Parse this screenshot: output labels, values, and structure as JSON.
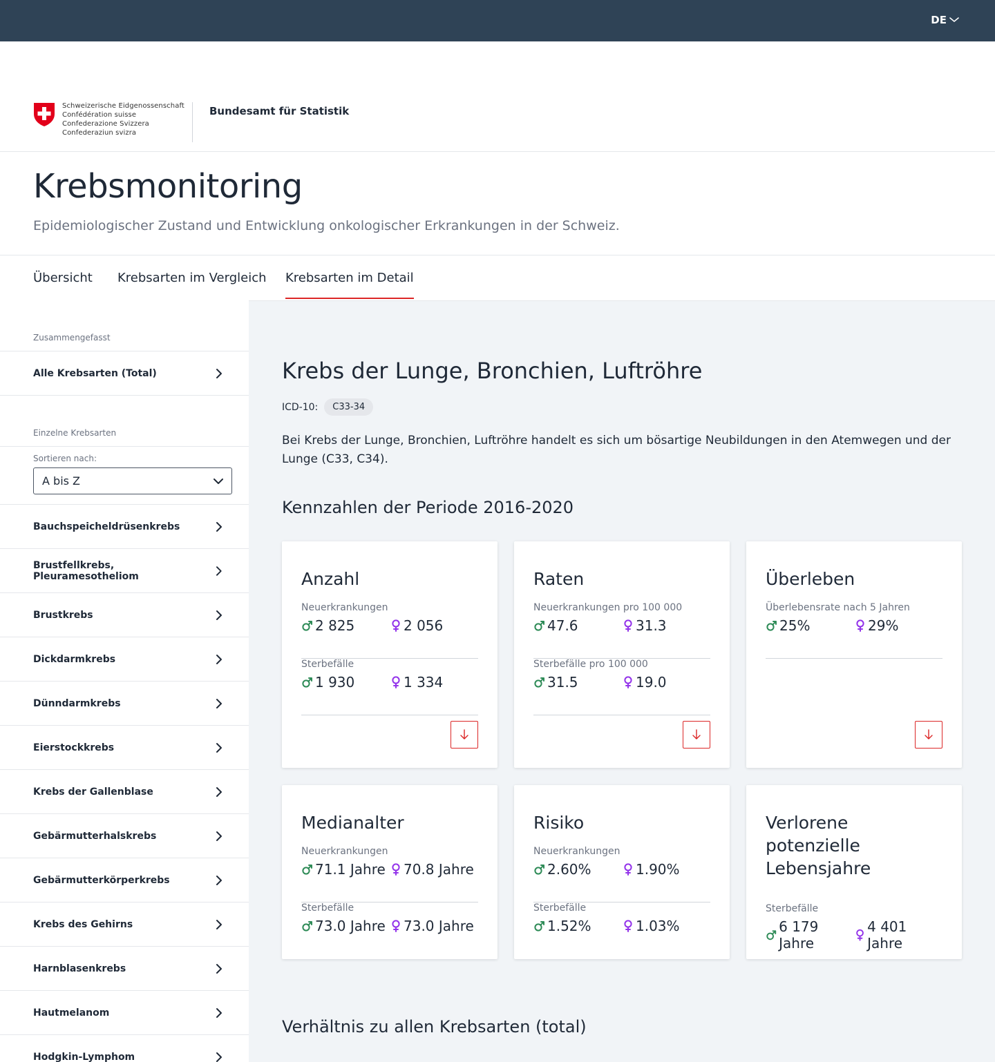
{
  "topbar": {
    "language": "DE"
  },
  "header": {
    "confederation_lines": [
      "Schweizerische Eidgenossenschaft",
      "Confédération suisse",
      "Confederazione Svizzera",
      "Confederaziun svizra"
    ],
    "office": "Bundesamt für Statistik"
  },
  "hero": {
    "title": "Krebsmonitoring",
    "subtitle": "Epidemiologischer Zustand und Entwicklung onkologischer Erkrankungen in der Schweiz."
  },
  "tabs": [
    {
      "label": "Übersicht"
    },
    {
      "label": "Krebsarten im Vergleich"
    },
    {
      "label": "Krebsarten im Detail"
    }
  ],
  "sidebar": {
    "summary_caption": "Zusammengefasst",
    "summary_item": "Alle Krebsarten (Total)",
    "individual_caption": "Einzelne Krebsarten",
    "sort_label": "Sortieren nach:",
    "sort_value": "A bis Z",
    "items": [
      "Bauchspeicheldrüsenkrebs",
      "Brustfellkrebs, Pleuramesotheliom",
      "Brustkrebs",
      "Dickdarmkrebs",
      "Dünndarmkrebs",
      "Eierstockkrebs",
      "Krebs der Gallenblase",
      "Gebärmutterhalskrebs",
      "Gebärmutterkörperkrebs",
      "Krebs des Gehirns",
      "Harnblasenkrebs",
      "Hautmelanom",
      "Hodgkin-Lymphom"
    ]
  },
  "main": {
    "title": "Krebs der Lunge, Bronchien, Luftröhre",
    "icd_label": "ICD-10:",
    "icd_code": "C33-34",
    "description": "Bei Krebs der Lunge, Bronchien, Luftröhre handelt es sich um bösartige Neubildungen in den Atemwegen und der Lunge (C33, C34).",
    "period_heading": "Kennzahlen der Periode 2016-2020",
    "relation_heading": "Verhältnis zu allen Krebsarten (total)",
    "cards": {
      "anzahl": {
        "title": "Anzahl",
        "g1_label": "Neuerkrankungen",
        "g1_m": "2 825",
        "g1_f": "2 056",
        "g2_label": "Sterbefälle",
        "g2_m": "1 930",
        "g2_f": "1 334"
      },
      "raten": {
        "title": "Raten",
        "g1_label": "Neuerkrankungen pro 100 000",
        "g1_m": "47.6",
        "g1_f": "31.3",
        "g2_label": "Sterbefälle pro 100 000",
        "g2_m": "31.5",
        "g2_f": "19.0"
      },
      "ueberleben": {
        "title": "Überleben",
        "g1_label": "Überlebensrate nach 5 Jahren",
        "g1_m": "25%",
        "g1_f": "29%"
      },
      "medianalter": {
        "title": "Medianalter",
        "g1_label": "Neuerkrankungen",
        "g1_m": "71.1 Jahre",
        "g1_f": "70.8 Jahre",
        "g2_label": "Sterbefälle",
        "g2_m": "73.0 Jahre",
        "g2_f": "73.0 Jahre"
      },
      "risiko": {
        "title": "Risiko",
        "g1_label": "Neuerkrankungen",
        "g1_m": "2.60%",
        "g1_f": "1.90%",
        "g2_label": "Sterbefälle",
        "g2_m": "1.52%",
        "g2_f": "1.03%"
      },
      "lebensjahre": {
        "title": "Verlorene potenzielle Lebensjahre",
        "g1_label": "Sterbefälle",
        "g1_m": "6 179 Jahre",
        "g1_f": "4 401 Jahre"
      }
    }
  },
  "colors": {
    "topbar": "#2f4356",
    "accent_red": "#dc2626",
    "male_green": "#2e8b57",
    "female_purple": "#9333ea",
    "main_bg": "#f1f4f7"
  }
}
